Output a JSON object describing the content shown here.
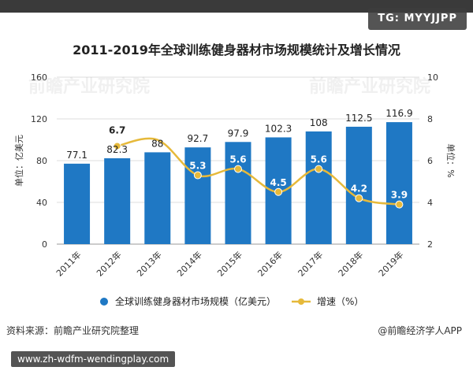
{
  "watermark_tag": "TG: MYYJJPP",
  "source": "资料来源：前瞻产业研究院整理",
  "brand": "@前瞻经济学人APP",
  "url": "www.zh-wdfm-wendingplay.com",
  "watermark_text": "前瞻产业研究院",
  "colors": {
    "bar": "#1f78c4",
    "line": "#e6b93a",
    "marker": "#e6b93a",
    "grid": "#dddddd",
    "text": "#333333"
  },
  "chart_data": {
    "type": "bar",
    "title": "2011-2019年全球训练健身器材市场规模统计及增长情况",
    "categories": [
      "2011年",
      "2012年",
      "2013年",
      "2014年",
      "2015年",
      "2016年",
      "2017年",
      "2018年",
      "2019年"
    ],
    "series": [
      {
        "name": "全球训练健身器材市场规模（亿美元）",
        "type": "bar",
        "axis": "left",
        "values": [
          77.1,
          82.3,
          88,
          92.7,
          97.9,
          102.3,
          108,
          112.5,
          116.9
        ],
        "labels": [
          "77.1",
          "82.3",
          "88",
          "92.7",
          "97.9",
          "102.3",
          "108",
          "112.5",
          "116.9"
        ]
      },
      {
        "name": "增速（%）",
        "type": "line",
        "axis": "right",
        "values": [
          null,
          6.7,
          7.0,
          5.3,
          5.6,
          4.5,
          5.6,
          4.2,
          3.9
        ],
        "labels": [
          "",
          "6.7",
          "",
          "5.3",
          "5.6",
          "4.5",
          "5.6",
          "4.2",
          "3.9"
        ]
      }
    ],
    "ylabel": "单位：亿美元",
    "y2label": "单位：%",
    "ylim": [
      0,
      160
    ],
    "yticks": [
      "0",
      "40",
      "80",
      "120",
      "160"
    ],
    "y2lim": [
      2,
      10
    ],
    "y2ticks": [
      "2",
      "4",
      "6",
      "8",
      "10"
    ],
    "legend": [
      "全球训练健身器材市场规模（亿美元）",
      "增速（%）"
    ],
    "legend_position": "bottom",
    "grid": true
  }
}
